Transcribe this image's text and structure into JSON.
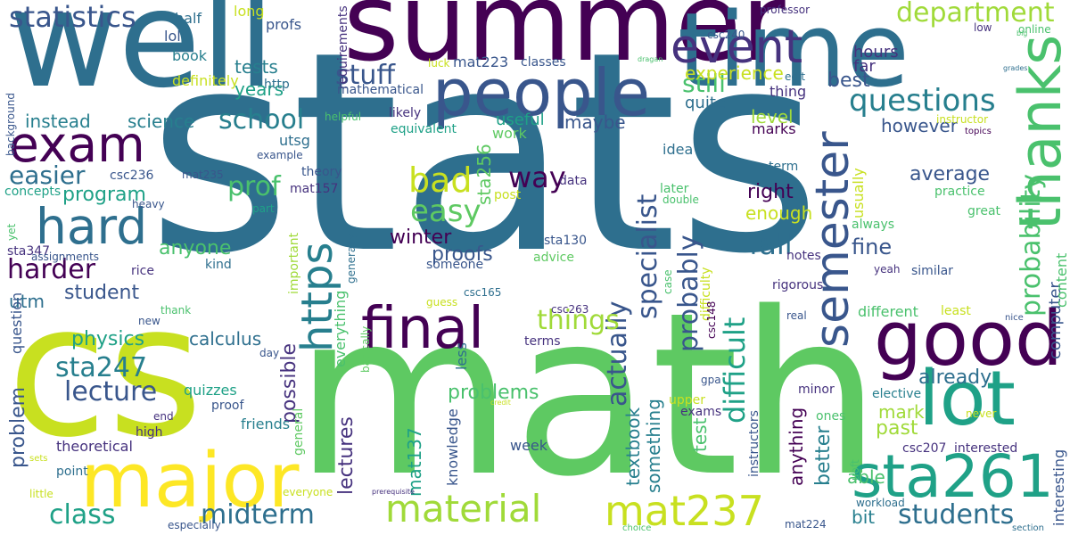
{
  "colors": {
    "background": "#ffffff",
    "palette": [
      "#440154",
      "#46327e",
      "#365c8d",
      "#2e6f8e",
      "#277f8e",
      "#1fa187",
      "#4ac16d",
      "#a0da39",
      "#c8e020",
      "#fde725"
    ]
  },
  "words": [
    {
      "text": "stats",
      "color": "#2e6f8e",
      "rotated": false
    },
    {
      "text": "math",
      "color": "#5ec962",
      "rotated": false
    },
    {
      "text": "cs",
      "color": "#c8e020",
      "rotated": false
    },
    {
      "text": "well",
      "color": "#2e6f8e",
      "rotated": false
    },
    {
      "text": "summer",
      "color": "#440154",
      "rotated": false
    },
    {
      "text": "time",
      "color": "#2e6f8e",
      "rotated": false
    },
    {
      "text": "major",
      "color": "#fde725",
      "rotated": false
    },
    {
      "text": "good",
      "color": "#440154",
      "rotated": false
    },
    {
      "text": "lot",
      "color": "#1fa187",
      "rotated": false
    },
    {
      "text": "people",
      "color": "#39568c",
      "rotated": false
    },
    {
      "text": "exam",
      "color": "#440154",
      "rotated": false
    },
    {
      "text": "hard",
      "color": "#2e6f8e",
      "rotated": false
    },
    {
      "text": "final",
      "color": "#440154",
      "rotated": false
    },
    {
      "text": "sta261",
      "color": "#1fa187",
      "rotated": false
    },
    {
      "text": "event",
      "color": "#46327e",
      "rotated": false
    },
    {
      "text": "thanks",
      "color": "#4ac16d",
      "rotated": true
    },
    {
      "text": "semester",
      "color": "#39568c",
      "rotated": true
    },
    {
      "text": "https",
      "color": "#277f8e",
      "rotated": true
    },
    {
      "text": "material",
      "color": "#a0da39",
      "rotated": false
    },
    {
      "text": "mat237",
      "color": "#c8e020",
      "rotated": false
    },
    {
      "text": "statistics",
      "color": "#39568c",
      "rotated": false
    },
    {
      "text": "department",
      "color": "#a0da39",
      "rotated": false
    },
    {
      "text": "questions",
      "color": "#277f8e",
      "rotated": false
    },
    {
      "text": "probability",
      "color": "#4ac16d",
      "rotated": true
    },
    {
      "text": "specialist",
      "color": "#39568c",
      "rotated": true
    },
    {
      "text": "probably",
      "color": "#39568c",
      "rotated": true
    },
    {
      "text": "difficult",
      "color": "#1fa187",
      "rotated": true
    },
    {
      "text": "actually",
      "color": "#39568c",
      "rotated": true
    },
    {
      "text": "harder",
      "color": "#440154",
      "rotated": false
    },
    {
      "text": "sta247",
      "color": "#277f8e",
      "rotated": false
    },
    {
      "text": "lecture",
      "color": "#39568c",
      "rotated": false
    },
    {
      "text": "class",
      "color": "#1fa187",
      "rotated": false
    },
    {
      "text": "midterm",
      "color": "#2e6f8e",
      "rotated": false
    },
    {
      "text": "students",
      "color": "#2e6f8e",
      "rotated": false
    },
    {
      "text": "stuff",
      "color": "#39568c",
      "rotated": false
    },
    {
      "text": "school",
      "color": "#277f8e",
      "rotated": false
    },
    {
      "text": "easier",
      "color": "#2e6f8e",
      "rotated": false
    },
    {
      "text": "prof",
      "color": "#4ac16d",
      "rotated": false
    },
    {
      "text": "bad",
      "color": "#c8e020",
      "rotated": false
    },
    {
      "text": "easy",
      "color": "#5ec962",
      "rotated": false
    },
    {
      "text": "way",
      "color": "#440154",
      "rotated": false
    },
    {
      "text": "fall",
      "color": "#2e6f8e",
      "rotated": false
    },
    {
      "text": "things",
      "color": "#a0da39",
      "rotated": false
    },
    {
      "text": "still",
      "color": "#4ac16d",
      "rotated": false
    },
    {
      "text": "level",
      "color": "#a0da39",
      "rotated": false
    },
    {
      "text": "however",
      "color": "#39568c",
      "rotated": false
    },
    {
      "text": "average",
      "color": "#39568c",
      "rotated": false
    },
    {
      "text": "right",
      "color": "#440154",
      "rotated": false
    },
    {
      "text": "enough",
      "color": "#c8e020",
      "rotated": false
    },
    {
      "text": "fine",
      "color": "#39568c",
      "rotated": false
    },
    {
      "text": "problems",
      "color": "#4ac16d",
      "rotated": false
    },
    {
      "text": "proofs",
      "color": "#39568c",
      "rotated": false
    },
    {
      "text": "winter",
      "color": "#440154",
      "rotated": false
    },
    {
      "text": "anyone",
      "color": "#4ac16d",
      "rotated": false
    },
    {
      "text": "physics",
      "color": "#1fa187",
      "rotated": false
    },
    {
      "text": "calculus",
      "color": "#2e6f8e",
      "rotated": false
    },
    {
      "text": "program",
      "color": "#1fa187",
      "rotated": false
    },
    {
      "text": "student",
      "color": "#39568c",
      "rotated": false
    },
    {
      "text": "instead",
      "color": "#277f8e",
      "rotated": false
    },
    {
      "text": "science",
      "color": "#277f8e",
      "rotated": false
    },
    {
      "text": "best",
      "color": "#39568c",
      "rotated": false
    },
    {
      "text": "experience",
      "color": "#c8e020",
      "rotated": false
    },
    {
      "text": "tests",
      "color": "#277f8e",
      "rotated": false
    },
    {
      "text": "years",
      "color": "#1fa187",
      "rotated": false
    },
    {
      "text": "maybe",
      "color": "#39568c",
      "rotated": false
    },
    {
      "text": "useful",
      "color": "#1fa187",
      "rotated": false
    },
    {
      "text": "work",
      "color": "#5ec962",
      "rotated": false
    },
    {
      "text": "idea",
      "color": "#2e6f8e",
      "rotated": false
    },
    {
      "text": "quite",
      "color": "#2e6f8e",
      "rotated": false
    },
    {
      "text": "marks",
      "color": "#440154",
      "rotated": false
    },
    {
      "text": "hours",
      "color": "#46327e",
      "rotated": false
    },
    {
      "text": "far",
      "color": "#46327e",
      "rotated": false
    },
    {
      "text": "utm",
      "color": "#2e6f8e",
      "rotated": false
    },
    {
      "text": "already",
      "color": "#2e6f8e",
      "rotated": false
    },
    {
      "text": "mark",
      "color": "#a0da39",
      "rotated": false
    },
    {
      "text": "past",
      "color": "#a0da39",
      "rotated": false
    },
    {
      "text": "bit",
      "color": "#277f8e",
      "rotated": false
    },
    {
      "text": "able",
      "color": "#4ac16d",
      "rotated": false
    },
    {
      "text": "sta256",
      "color": "#5ec962",
      "rotated": true
    },
    {
      "text": "textbook",
      "color": "#277f8e",
      "rotated": true
    },
    {
      "text": "something",
      "color": "#277f8e",
      "rotated": true
    },
    {
      "text": "anything",
      "color": "#440154",
      "rotated": true
    },
    {
      "text": "better",
      "color": "#277f8e",
      "rotated": true
    },
    {
      "text": "test",
      "color": "#4ac16d",
      "rotated": true
    },
    {
      "text": "possible",
      "color": "#46327e",
      "rotated": true
    },
    {
      "text": "lectures",
      "color": "#46327e",
      "rotated": true
    },
    {
      "text": "mat137",
      "color": "#1fa187",
      "rotated": true
    },
    {
      "text": "problem",
      "color": "#39568c",
      "rotated": true
    },
    {
      "text": "question",
      "color": "#39568c",
      "rotated": true
    },
    {
      "text": "knowledge",
      "color": "#39568c",
      "rotated": true
    },
    {
      "text": "everything",
      "color": "#4ac16d",
      "rotated": true
    },
    {
      "text": "computer",
      "color": "#39568c",
      "rotated": true
    },
    {
      "text": "usually",
      "color": "#c8e020",
      "rotated": true
    },
    {
      "text": "content",
      "color": "#4ac16d",
      "rotated": true
    },
    {
      "text": "difficulty",
      "color": "#c8e020",
      "rotated": true
    },
    {
      "text": "interesting",
      "color": "#39568c",
      "rotated": true
    },
    {
      "text": "requirements",
      "color": "#46327e",
      "rotated": true
    },
    {
      "text": "background",
      "color": "#39568c",
      "rotated": true
    },
    {
      "text": "important",
      "color": "#a0da39",
      "rotated": true
    },
    {
      "text": "generally",
      "color": "#2e6f8e",
      "rotated": true
    },
    {
      "text": "basically",
      "color": "#5ec962",
      "rotated": true
    },
    {
      "text": "general",
      "color": "#5ec962",
      "rotated": true
    },
    {
      "text": "instructors",
      "color": "#39568c",
      "rotated": true
    },
    {
      "text": "csc148",
      "color": "#440154",
      "rotated": true
    },
    {
      "text": "case",
      "color": "#4ac16d",
      "rotated": true
    },
    {
      "text": "less",
      "color": "#2e6f8e",
      "rotated": true
    },
    {
      "text": "yet",
      "color": "#4ac16d",
      "rotated": true
    },
    {
      "text": "uoft",
      "color": "#4ac16d",
      "rotated": true
    },
    {
      "text": "profs",
      "color": "#39568c",
      "rotated": false
    },
    {
      "text": "half",
      "color": "#2e6f8e",
      "rotated": false
    },
    {
      "text": "lol",
      "color": "#39568c",
      "rotated": false
    },
    {
      "text": "book",
      "color": "#277f8e",
      "rotated": false
    },
    {
      "text": "long",
      "color": "#c8e020",
      "rotated": false
    },
    {
      "text": "definitely",
      "color": "#c8e020",
      "rotated": false
    },
    {
      "text": "http",
      "color": "#2e6f8e",
      "rotated": false
    },
    {
      "text": "luck",
      "color": "#c8e020",
      "rotated": false
    },
    {
      "text": "mat223",
      "color": "#39568c",
      "rotated": false
    },
    {
      "text": "classes",
      "color": "#39568c",
      "rotated": false
    },
    {
      "text": "mathematical",
      "color": "#39568c",
      "rotated": false
    },
    {
      "text": "professor",
      "color": "#46327e",
      "rotated": false
    },
    {
      "text": "csc240",
      "color": "#39568c",
      "rotated": false
    },
    {
      "text": "low",
      "color": "#46327e",
      "rotated": false
    },
    {
      "text": "online",
      "color": "#4ac16d",
      "rotated": false
    },
    {
      "text": "big",
      "color": "#4ac16d",
      "rotated": false
    },
    {
      "text": "grades",
      "color": "#2e6f8e",
      "rotated": false
    },
    {
      "text": "dragan",
      "color": "#4ac16d",
      "rotated": false
    },
    {
      "text": "edit",
      "color": "#2e6f8e",
      "rotated": false
    },
    {
      "text": "thing",
      "color": "#46327e",
      "rotated": false
    },
    {
      "text": "instructor",
      "color": "#c8e020",
      "rotated": false
    },
    {
      "text": "topics",
      "color": "#440154",
      "rotated": false
    },
    {
      "text": "likely",
      "color": "#46327e",
      "rotated": false
    },
    {
      "text": "helpful",
      "color": "#4ac16d",
      "rotated": false
    },
    {
      "text": "equivalent",
      "color": "#1fa187",
      "rotated": false
    },
    {
      "text": "utsg",
      "color": "#2e6f8e",
      "rotated": false
    },
    {
      "text": "example",
      "color": "#39568c",
      "rotated": false
    },
    {
      "text": "theory",
      "color": "#39568c",
      "rotated": false
    },
    {
      "text": "mat235",
      "color": "#39568c",
      "rotated": false
    },
    {
      "text": "csc236",
      "color": "#39568c",
      "rotated": false
    },
    {
      "text": "mat157",
      "color": "#46327e",
      "rotated": false
    },
    {
      "text": "concepts",
      "color": "#1fa187",
      "rotated": false
    },
    {
      "text": "heavy",
      "color": "#39568c",
      "rotated": false
    },
    {
      "text": "part",
      "color": "#1fa187",
      "rotated": false
    },
    {
      "text": "post",
      "color": "#c8e020",
      "rotated": false
    },
    {
      "text": "data",
      "color": "#46327e",
      "rotated": false
    },
    {
      "text": "later",
      "color": "#4ac16d",
      "rotated": false
    },
    {
      "text": "double",
      "color": "#4ac16d",
      "rotated": false
    },
    {
      "text": "term",
      "color": "#2e6f8e",
      "rotated": false
    },
    {
      "text": "practice",
      "color": "#4ac16d",
      "rotated": false
    },
    {
      "text": "great",
      "color": "#4ac16d",
      "rotated": false
    },
    {
      "text": "always",
      "color": "#4ac16d",
      "rotated": false
    },
    {
      "text": "sta347",
      "color": "#46327e",
      "rotated": false
    },
    {
      "text": "assignments",
      "color": "#39568c",
      "rotated": false
    },
    {
      "text": "rice",
      "color": "#46327e",
      "rotated": false
    },
    {
      "text": "kind",
      "color": "#2e6f8e",
      "rotated": false
    },
    {
      "text": "someone",
      "color": "#39568c",
      "rotated": false
    },
    {
      "text": "advice",
      "color": "#5ec962",
      "rotated": false
    },
    {
      "text": "sta130",
      "color": "#39568c",
      "rotated": false
    },
    {
      "text": "notes",
      "color": "#46327e",
      "rotated": false
    },
    {
      "text": "yeah",
      "color": "#46327e",
      "rotated": false
    },
    {
      "text": "similar",
      "color": "#39568c",
      "rotated": false
    },
    {
      "text": "rigorous",
      "color": "#46327e",
      "rotated": false
    },
    {
      "text": "csc165",
      "color": "#2e6f8e",
      "rotated": false
    },
    {
      "text": "csc263",
      "color": "#46327e",
      "rotated": false
    },
    {
      "text": "guess",
      "color": "#c8e020",
      "rotated": false
    },
    {
      "text": "real",
      "color": "#39568c",
      "rotated": false
    },
    {
      "text": "different",
      "color": "#4ac16d",
      "rotated": false
    },
    {
      "text": "least",
      "color": "#c8e020",
      "rotated": false
    },
    {
      "text": "nice",
      "color": "#39568c",
      "rotated": false
    },
    {
      "text": "thank",
      "color": "#4ac16d",
      "rotated": false
    },
    {
      "text": "new",
      "color": "#39568c",
      "rotated": false
    },
    {
      "text": "day",
      "color": "#39568c",
      "rotated": false
    },
    {
      "text": "terms",
      "color": "#46327e",
      "rotated": false
    },
    {
      "text": "quizzes",
      "color": "#1fa187",
      "rotated": false
    },
    {
      "text": "end",
      "color": "#46327e",
      "rotated": false
    },
    {
      "text": "high",
      "color": "#46327e",
      "rotated": false
    },
    {
      "text": "proof",
      "color": "#39568c",
      "rotated": false
    },
    {
      "text": "friends",
      "color": "#277f8e",
      "rotated": false
    },
    {
      "text": "theoretical",
      "color": "#46327e",
      "rotated": false
    },
    {
      "text": "point",
      "color": "#2e6f8e",
      "rotated": false
    },
    {
      "text": "sets",
      "color": "#c8e020",
      "rotated": false
    },
    {
      "text": "little",
      "color": "#c8e020",
      "rotated": false
    },
    {
      "text": "especially",
      "color": "#39568c",
      "rotated": false
    },
    {
      "text": "everyone",
      "color": "#c8e020",
      "rotated": false
    },
    {
      "text": "prerequisite",
      "color": "#46327e",
      "rotated": false
    },
    {
      "text": "credit",
      "color": "#c8e020",
      "rotated": false
    },
    {
      "text": "week",
      "color": "#39568c",
      "rotated": false
    },
    {
      "text": "upper",
      "color": "#c8e020",
      "rotated": false
    },
    {
      "text": "gpa",
      "color": "#39568c",
      "rotated": false
    },
    {
      "text": "exams",
      "color": "#46327e",
      "rotated": false
    },
    {
      "text": "minor",
      "color": "#46327e",
      "rotated": false
    },
    {
      "text": "elective",
      "color": "#277f8e",
      "rotated": false
    },
    {
      "text": "never",
      "color": "#c8e020",
      "rotated": false
    },
    {
      "text": "ones",
      "color": "#4ac16d",
      "rotated": false
    },
    {
      "text": "csc207",
      "color": "#46327e",
      "rotated": false
    },
    {
      "text": "interested",
      "color": "#46327e",
      "rotated": false
    },
    {
      "text": "workload",
      "color": "#2e6f8e",
      "rotated": false
    },
    {
      "text": "mat224",
      "color": "#39568c",
      "rotated": false
    },
    {
      "text": "choice",
      "color": "#4ac16d",
      "rotated": false
    },
    {
      "text": "section",
      "color": "#2e6f8e",
      "rotated": false
    }
  ]
}
